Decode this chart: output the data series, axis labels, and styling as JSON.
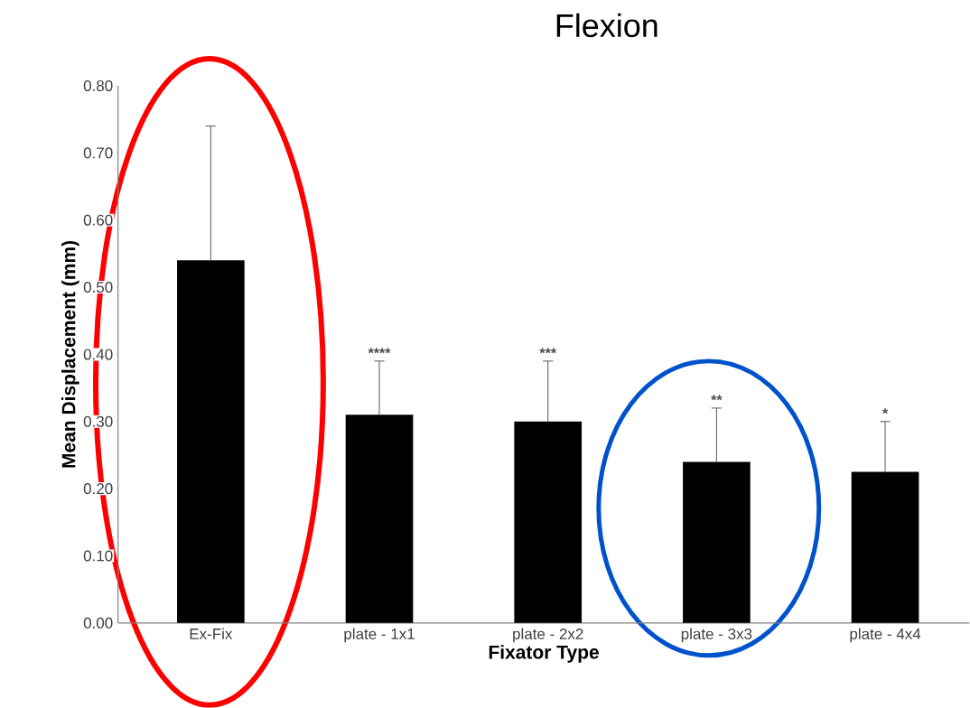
{
  "chart_data": {
    "type": "bar",
    "title": "Flexion",
    "xlabel": "Fixator Type",
    "ylabel": "Mean Displacement (mm)",
    "categories": [
      "Ex-Fix",
      "plate - 1x1",
      "plate - 2x2",
      "plate - 3x3",
      "plate - 4x4"
    ],
    "values": [
      0.54,
      0.31,
      0.3,
      0.24,
      0.225
    ],
    "errors": [
      [
        0.54,
        0.74
      ],
      [
        0.31,
        0.39
      ],
      [
        0.3,
        0.39
      ],
      [
        0.24,
        0.32
      ],
      [
        0.225,
        0.3
      ]
    ],
    "color": "#000000",
    "ylim": [
      0,
      0.8
    ],
    "yticks": [
      {
        "value": 0,
        "label": "0.00"
      },
      {
        "value": 0.1,
        "label": "0.10"
      },
      {
        "value": 0.2,
        "label": "0.20"
      },
      {
        "value": 0.3,
        "label": "0.30"
      },
      {
        "value": 0.4,
        "label": "0.40"
      },
      {
        "value": 0.5,
        "label": "0.50"
      },
      {
        "value": 0.6,
        "label": "0.60"
      },
      {
        "value": 0.7,
        "label": "0.70"
      },
      {
        "value": 0.8,
        "label": "0.80"
      }
    ],
    "annotations": [
      {
        "text": "****",
        "x": "plate - 1x1",
        "y": 0.39
      },
      {
        "text": "***",
        "x": "plate - 2x2",
        "y": 0.39
      },
      {
        "text": "**",
        "x": "plate - 3x3",
        "y": 0.32
      },
      {
        "text": "*",
        "x": "plate - 4x4",
        "y": 0.3
      }
    ],
    "grid": false
  }
}
